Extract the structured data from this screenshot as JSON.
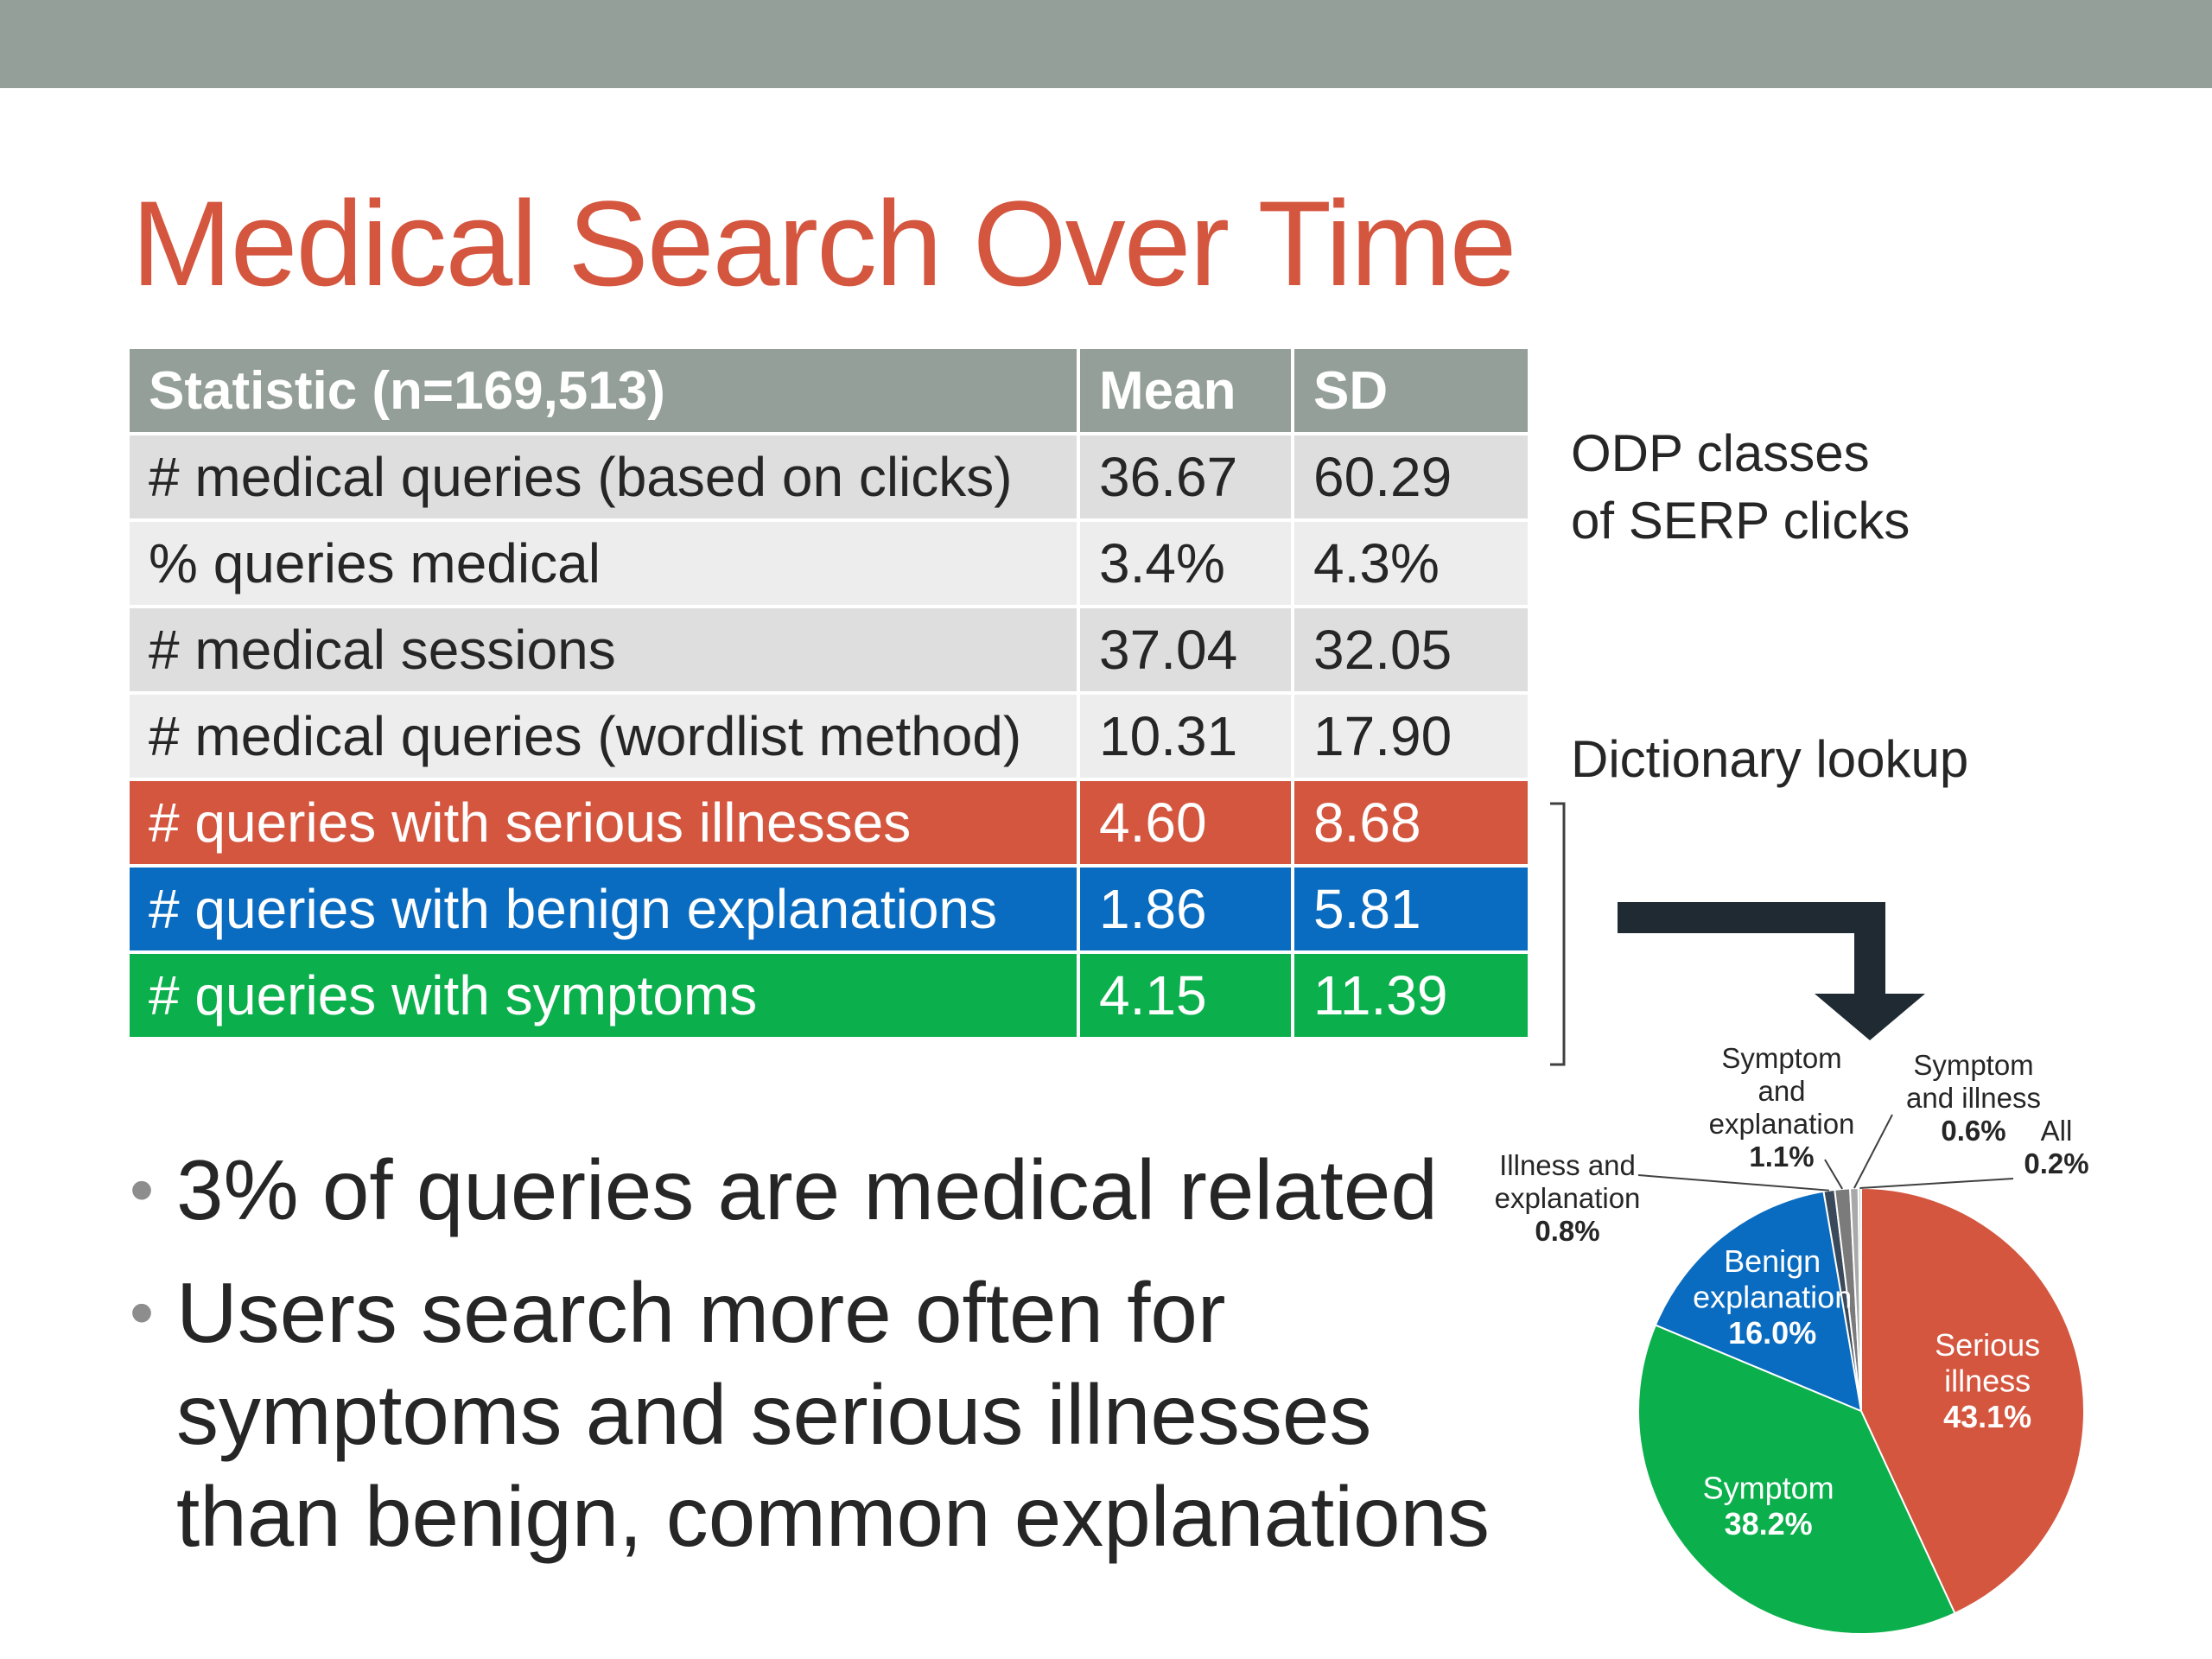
{
  "slide": {
    "title": "Medical Search Over Time"
  },
  "table": {
    "headers": [
      "Statistic (n=169,513)",
      "Mean",
      "SD"
    ],
    "rows": [
      {
        "statistic": "# medical queries (based on clicks)",
        "mean": "36.67",
        "sd": "60.29"
      },
      {
        "statistic": "% queries medical",
        "mean": "3.4%",
        "sd": "4.3%"
      },
      {
        "statistic": "# medical sessions",
        "mean": "37.04",
        "sd": "32.05"
      },
      {
        "statistic": "# medical queries (wordlist method)",
        "mean": "10.31",
        "sd": "17.90"
      },
      {
        "statistic": "# queries with serious illnesses",
        "mean": "4.60",
        "sd": "8.68"
      },
      {
        "statistic": "# queries with benign explanations",
        "mean": "1.86",
        "sd": "5.81"
      },
      {
        "statistic": "# queries with symptoms",
        "mean": "4.15",
        "sd": "11.39"
      }
    ]
  },
  "notes": {
    "odp_line1": "ODP classes",
    "odp_line2": "of SERP clicks",
    "dictionary": "Dictionary lookup"
  },
  "bullets": [
    "3% of queries are medical related",
    "Users search more often for symptoms and serious illnesses than benign, common explanations"
  ],
  "chart_data": {
    "type": "pie",
    "slices": [
      {
        "label": "Serious illness",
        "lines": [
          "Serious",
          "illness"
        ],
        "value": 43.1,
        "value_label": "43.1%",
        "color": "#d4563f"
      },
      {
        "label": "Symptom",
        "lines": [
          "Symptom"
        ],
        "value": 38.2,
        "value_label": "38.2%",
        "color": "#0bb04c"
      },
      {
        "label": "Benign explanation",
        "lines": [
          "Benign",
          "explanation"
        ],
        "value": 16.0,
        "value_label": "16.0%",
        "color": "#0a6cc0"
      },
      {
        "label": "Illness and explanation",
        "lines": [
          "Illness and",
          "explanation"
        ],
        "value": 0.8,
        "value_label": "0.8%",
        "color": "#3a4a5a"
      },
      {
        "label": "Symptom and explanation",
        "lines": [
          "Symptom",
          "and",
          "explanation"
        ],
        "value": 1.1,
        "value_label": "1.1%",
        "color": "#7b7b7b"
      },
      {
        "label": "Symptom and illness",
        "lines": [
          "Symptom",
          "and illness"
        ],
        "value": 0.6,
        "value_label": "0.6%",
        "color": "#a9a9a9"
      },
      {
        "label": "All",
        "lines": [
          "All"
        ],
        "value": 0.2,
        "value_label": "0.2%",
        "color": "#cfcfcf"
      }
    ]
  }
}
